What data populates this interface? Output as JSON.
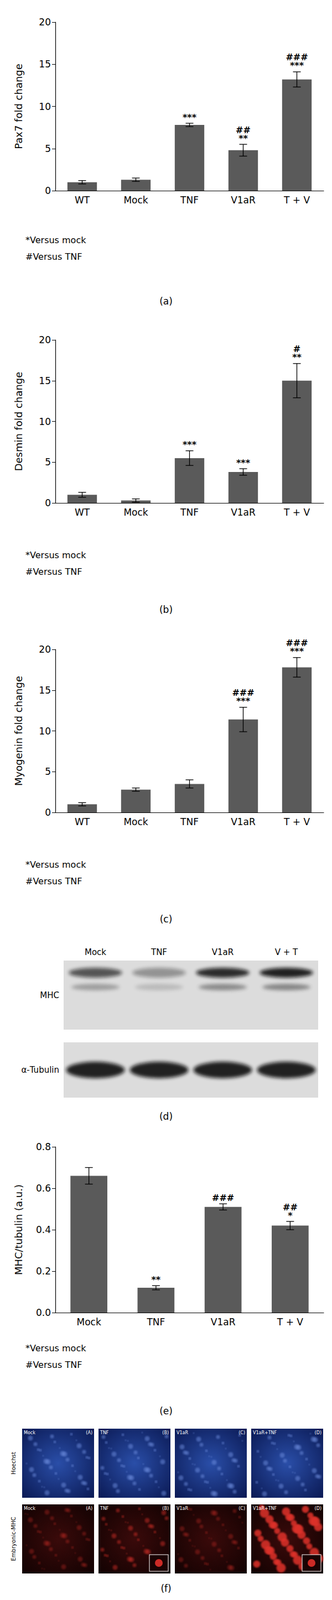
{
  "chart_data": [
    {
      "type": "bar",
      "caption": "(a)",
      "ylabel": "Pax7 fold change",
      "categories": [
        "WT",
        "Mock",
        "TNF",
        "V1aR",
        "T + V"
      ],
      "values": [
        1.0,
        1.3,
        7.8,
        4.8,
        13.2
      ],
      "errors": [
        0.2,
        0.2,
        0.2,
        0.7,
        0.9
      ],
      "significance": [
        [],
        [],
        [
          "***"
        ],
        [
          "##",
          "**"
        ],
        [
          "###",
          "***"
        ]
      ],
      "annotations": [
        "*Versus mock",
        "#Versus TNF"
      ],
      "color": "#5a5a5a",
      "ylim": [
        0,
        20
      ],
      "yticks": [
        0,
        5,
        10,
        15,
        20
      ],
      "grid": false
    },
    {
      "type": "bar",
      "caption": "(b)",
      "ylabel": "Desmin fold change",
      "categories": [
        "WT",
        "Mock",
        "TNF",
        "V1aR",
        "T + V"
      ],
      "values": [
        1.0,
        0.3,
        5.5,
        3.8,
        15.0
      ],
      "errors": [
        0.3,
        0.2,
        0.9,
        0.4,
        2.1
      ],
      "significance": [
        [],
        [],
        [
          "***"
        ],
        [
          "***"
        ],
        [
          "#",
          "**"
        ]
      ],
      "annotations": [
        "*Versus mock",
        "#Versus TNF"
      ],
      "color": "#5a5a5a",
      "ylim": [
        0,
        20
      ],
      "yticks": [
        0,
        5,
        10,
        15,
        20
      ],
      "grid": false
    },
    {
      "type": "bar",
      "caption": "(c)",
      "ylabel": "Myogenin fold change",
      "categories": [
        "WT",
        "Mock",
        "TNF",
        "V1aR",
        "T + V"
      ],
      "values": [
        1.0,
        2.8,
        3.5,
        11.4,
        17.8
      ],
      "errors": [
        0.2,
        0.2,
        0.5,
        1.5,
        1.2
      ],
      "significance": [
        [],
        [],
        [],
        [
          "###",
          "***"
        ],
        [
          "###",
          "***"
        ]
      ],
      "annotations": [
        "*Versus mock",
        "#Versus TNF"
      ],
      "color": "#5a5a5a",
      "ylim": [
        0,
        20
      ],
      "yticks": [
        0,
        5,
        10,
        15,
        20
      ],
      "grid": false
    },
    {
      "type": "bar",
      "caption": "(e)",
      "ylabel": "MHC/tubulin (a.u.)",
      "categories": [
        "Mock",
        "TNF",
        "V1aR",
        "T + V"
      ],
      "values": [
        0.66,
        0.12,
        0.51,
        0.42
      ],
      "errors": [
        0.04,
        0.01,
        0.015,
        0.02
      ],
      "significance": [
        [],
        [
          "**"
        ],
        [
          "###"
        ],
        [
          "##",
          "*"
        ]
      ],
      "annotations": [
        "*Versus mock",
        "#Versus TNF"
      ],
      "color": "#5a5a5a",
      "ylim": [
        0,
        0.8
      ],
      "yticks": [
        {
          "value": 0,
          "label": "0.0"
        },
        0.2,
        0.4,
        0.6,
        0.8
      ],
      "grid": false
    }
  ],
  "blot": {
    "caption": "(d)",
    "lanes": [
      "Mock",
      "TNF",
      "V1aR",
      "V + T"
    ],
    "rows": [
      "MHC",
      "α-Tubulin"
    ]
  },
  "micrographs": {
    "caption": "(f)",
    "columns": [
      "Mock",
      "TNF",
      "V1aR",
      "V1aR+TNF"
    ],
    "rows": [
      {
        "label": "Hoechst",
        "panels": [
          "(A)",
          "(B)",
          "(C)",
          "(D)"
        ]
      },
      {
        "label": "Embryonic-MHC",
        "panels": [
          "(A)",
          "(B)",
          "(C)",
          "(D)"
        ]
      }
    ]
  }
}
